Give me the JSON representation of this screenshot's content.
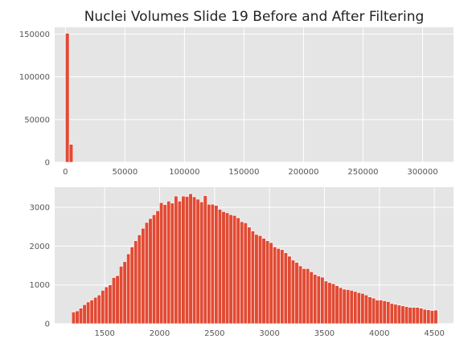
{
  "chart_data": [
    {
      "type": "bar",
      "title": "Nuclei Volumes Slide 19 Before and After Filtering",
      "xlabel": "",
      "ylabel": "",
      "xlim": [
        -9000,
        326000
      ],
      "ylim": [
        0,
        158000
      ],
      "grid": true,
      "xticks": [
        0,
        50000,
        100000,
        150000,
        200000,
        250000,
        300000
      ],
      "yticks": [
        0,
        50000,
        100000,
        150000
      ],
      "bin_width": 3200,
      "bin_starts": [
        0,
        3200
      ],
      "values": [
        151000,
        21000
      ]
    },
    {
      "type": "bar",
      "title": "",
      "xlabel": "",
      "ylabel": "",
      "xlim": [
        1045,
        4675
      ],
      "ylim": [
        0,
        3520
      ],
      "grid": true,
      "xticks": [
        1500,
        2000,
        2500,
        3000,
        3500,
        4000,
        4500
      ],
      "yticks": [
        0,
        1000,
        2000,
        3000
      ],
      "bin_width": 33.3,
      "bin_starts": [
        1200,
        1233.3,
        1266.6,
        1299.9,
        1333.2,
        1366.5,
        1399.8,
        1433.1,
        1466.4,
        1499.7,
        1533,
        1566.3,
        1599.6,
        1632.9,
        1666.2,
        1699.5,
        1732.8,
        1766.1,
        1799.4,
        1832.7,
        1866,
        1899.3,
        1932.6,
        1965.9,
        1999.2,
        2032.5,
        2065.8,
        2099.1,
        2132.4,
        2165.7,
        2199,
        2232.3,
        2265.6,
        2298.9,
        2332.2,
        2365.5,
        2398.8,
        2432.1,
        2465.4,
        2498.7,
        2532,
        2565.3,
        2598.6,
        2631.9,
        2665.2,
        2698.5,
        2731.8,
        2765.1,
        2798.4,
        2831.7,
        2865,
        2898.3,
        2931.6,
        2964.9,
        2998.2,
        3031.5,
        3064.8,
        3098.1,
        3131.4,
        3164.7,
        3198,
        3231.3,
        3264.6,
        3297.9,
        3331.2,
        3364.5,
        3397.8,
        3431.1,
        3464.4,
        3497.7,
        3531,
        3564.3,
        3597.6,
        3630.9,
        3664.2,
        3697.5,
        3730.8,
        3764.1,
        3797.4,
        3830.7,
        3864,
        3897.3,
        3930.6,
        3963.9,
        3997.2,
        4030.5,
        4063.8,
        4097.1,
        4130.4,
        4163.7,
        4197,
        4230.3,
        4263.6,
        4296.9,
        4330.2,
        4363.5,
        4396.8,
        4430.1,
        4463.4,
        4496.7
      ],
      "values": [
        300,
        330,
        400,
        490,
        560,
        610,
        680,
        740,
        860,
        950,
        1000,
        1190,
        1240,
        1480,
        1600,
        1800,
        1980,
        2140,
        2290,
        2460,
        2610,
        2710,
        2810,
        2910,
        3120,
        3070,
        3160,
        3110,
        3290,
        3160,
        3290,
        3280,
        3350,
        3270,
        3210,
        3140,
        3300,
        3080,
        3080,
        3050,
        2950,
        2890,
        2860,
        2810,
        2790,
        2730,
        2630,
        2600,
        2490,
        2390,
        2300,
        2270,
        2200,
        2140,
        2090,
        1980,
        1940,
        1910,
        1830,
        1740,
        1640,
        1580,
        1490,
        1420,
        1420,
        1340,
        1270,
        1230,
        1200,
        1100,
        1060,
        1030,
        980,
        930,
        890,
        880,
        860,
        830,
        800,
        780,
        740,
        690,
        660,
        610,
        610,
        590,
        570,
        520,
        500,
        480,
        460,
        440,
        420,
        420,
        420,
        400,
        370,
        360,
        340,
        350,
        330,
        370
      ]
    }
  ]
}
